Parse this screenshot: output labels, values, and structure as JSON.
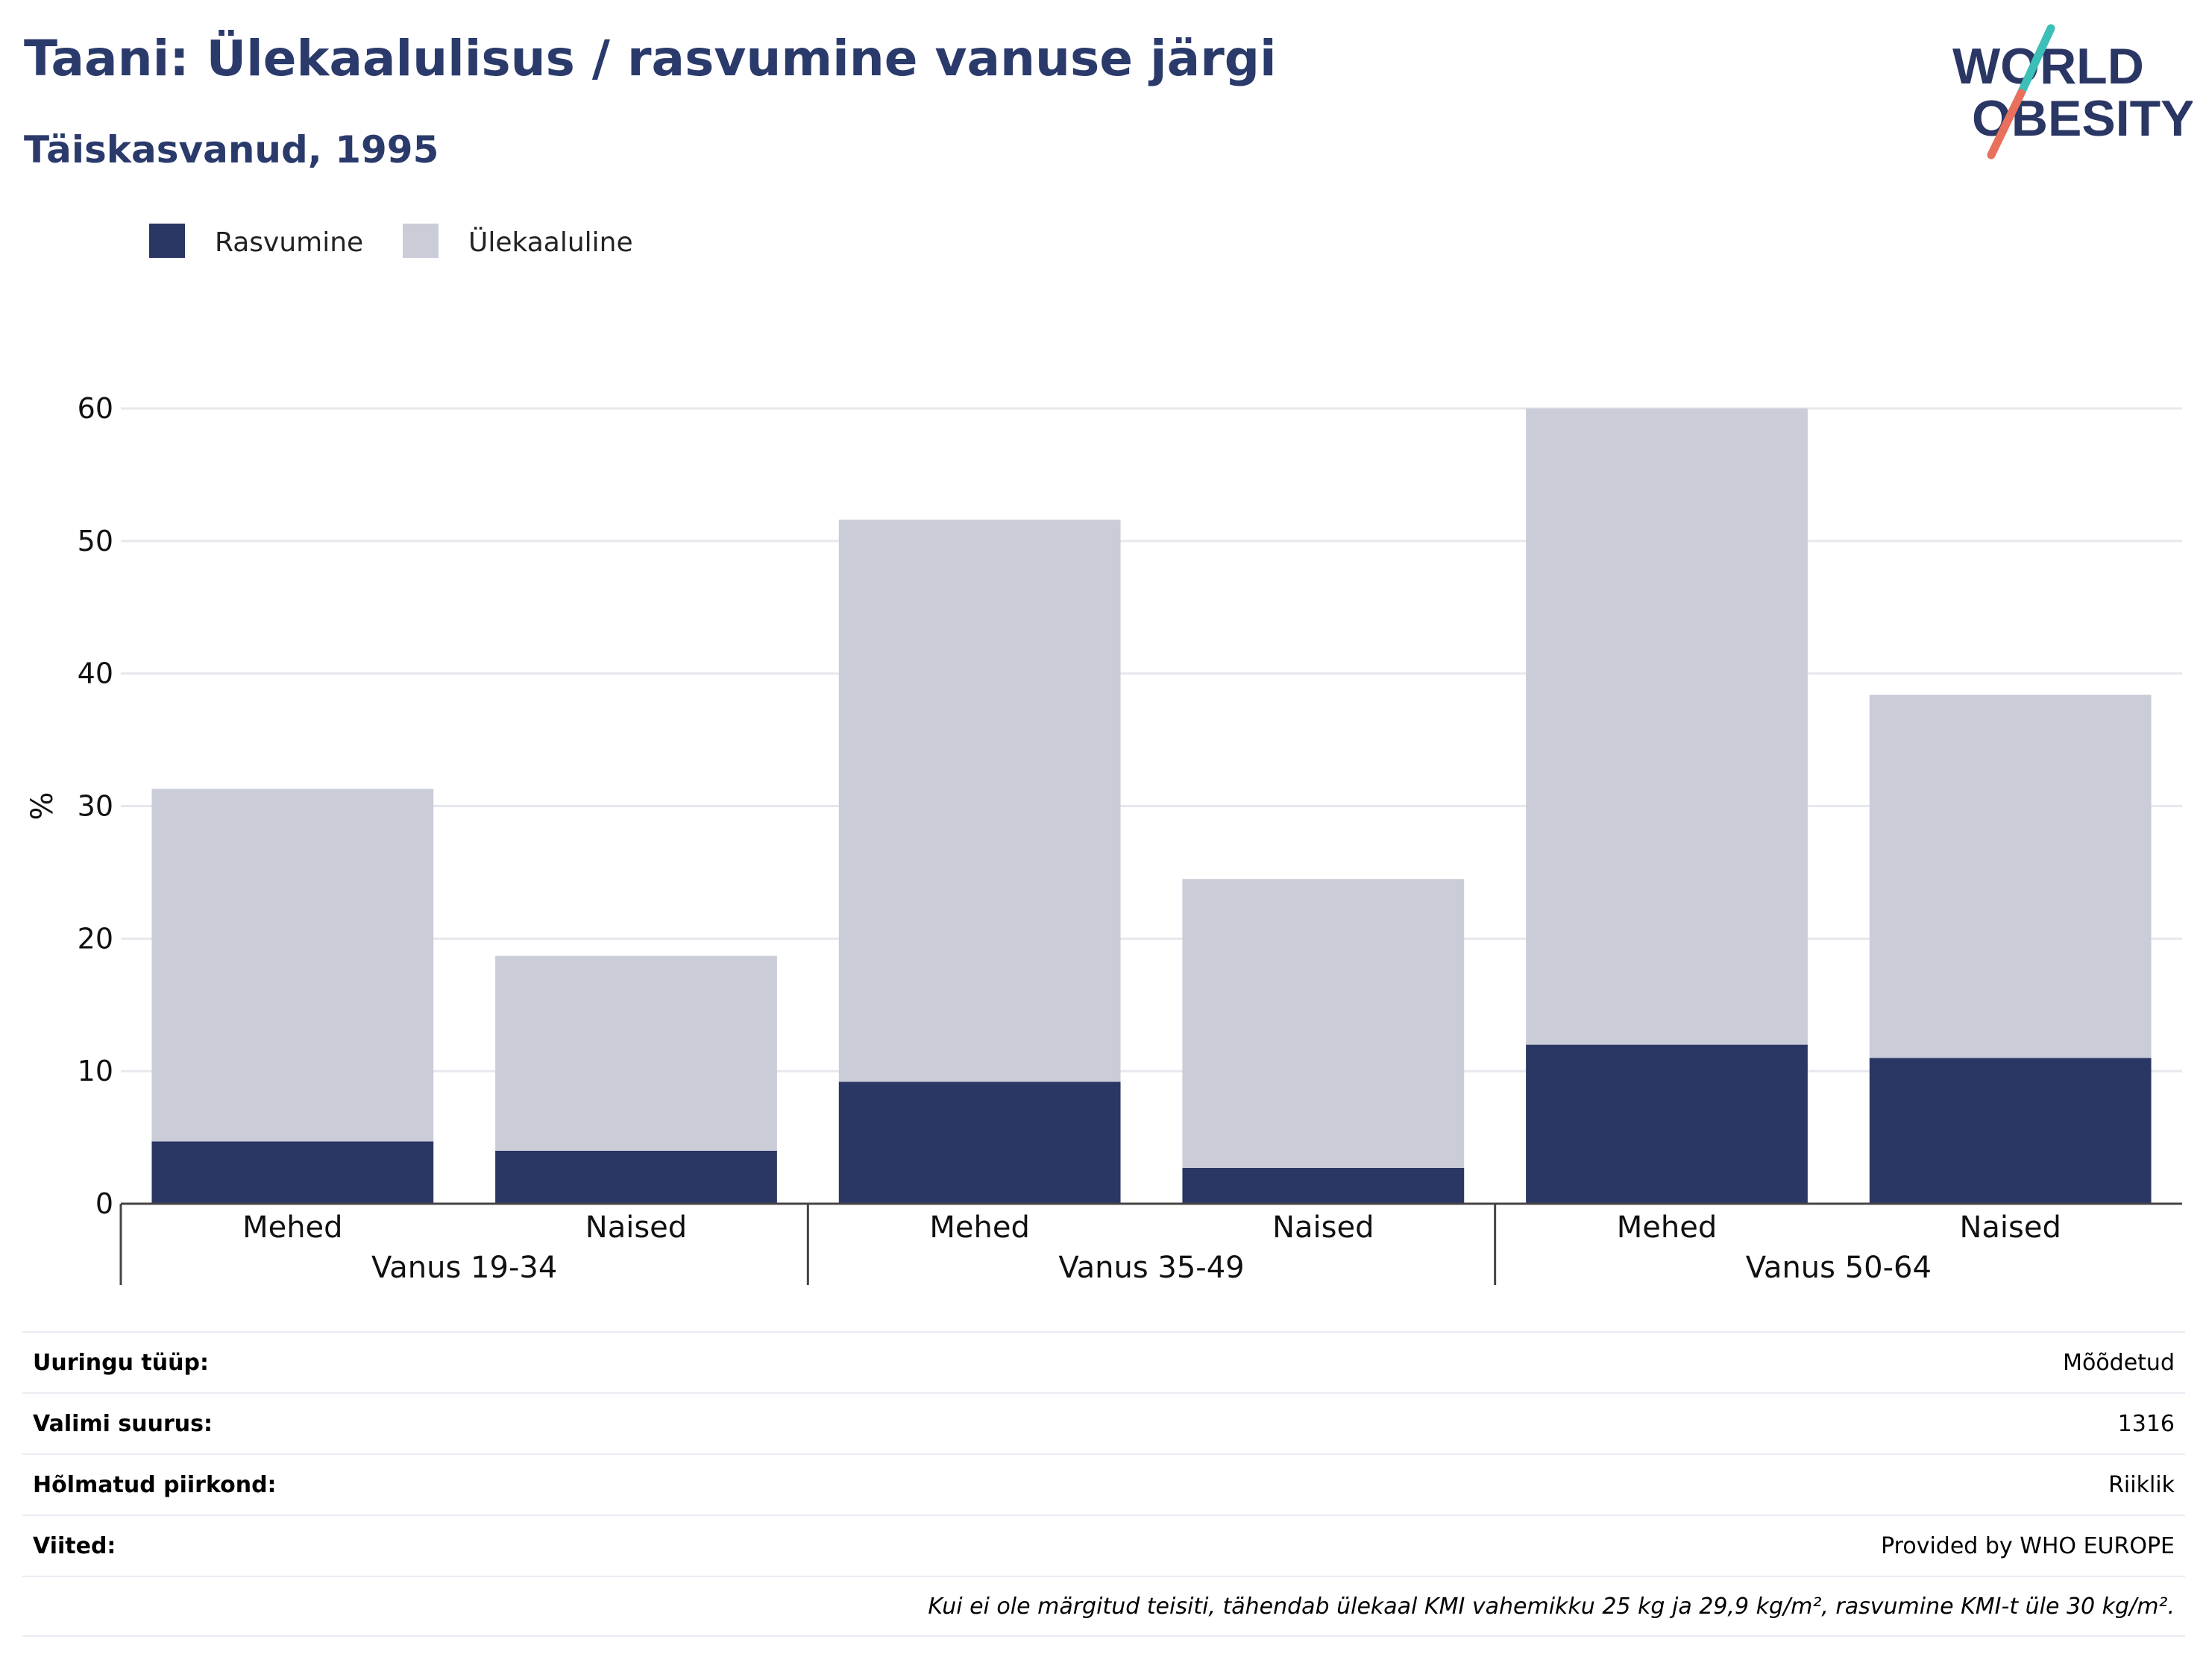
{
  "title": "Taani: Ülekaalulisus / rasvumine vanuse järgi",
  "subtitle": "Täiskasvanud, 1995",
  "logo": {
    "line1": "WORLD",
    "line2": "OBESITY"
  },
  "chart_data": {
    "type": "bar",
    "stacked": true,
    "ylabel": "%",
    "ylim": [
      0,
      60
    ],
    "yticks": [
      0,
      10,
      20,
      30,
      40,
      50,
      60
    ],
    "grid": true,
    "legend_position": "top-left",
    "groups": [
      {
        "label": "Vanus 19-34",
        "categories": [
          "Mehed",
          "Naised"
        ]
      },
      {
        "label": "Vanus 35-49",
        "categories": [
          "Mehed",
          "Naised"
        ]
      },
      {
        "label": "Vanus 50-64",
        "categories": [
          "Mehed",
          "Naised"
        ]
      }
    ],
    "series": [
      {
        "name": "Rasvumine",
        "color": "#2a3663",
        "values": [
          4.7,
          4.0,
          9.2,
          2.7,
          12.0,
          11.0
        ]
      },
      {
        "name": "Ülekaaluline",
        "color": "#caccd8",
        "values": [
          26.6,
          14.7,
          42.4,
          21.8,
          48.0,
          27.4
        ]
      }
    ]
  },
  "meta": {
    "rows": [
      {
        "label": "Uuringu tüüp:",
        "value": "Mõõdetud"
      },
      {
        "label": "Valimi suurus:",
        "value": "1316"
      },
      {
        "label": "Hõlmatud piirkond:",
        "value": "Riiklik"
      },
      {
        "label": "Viited:",
        "value": "Provided by WHO EUROPE"
      }
    ],
    "note": "Kui ei ole märgitud teisiti, tähendab ülekaal KMI vahemikku 25 kg ja 29,9 kg/m², rasvumine KMI-t üle 30 kg/m²."
  }
}
